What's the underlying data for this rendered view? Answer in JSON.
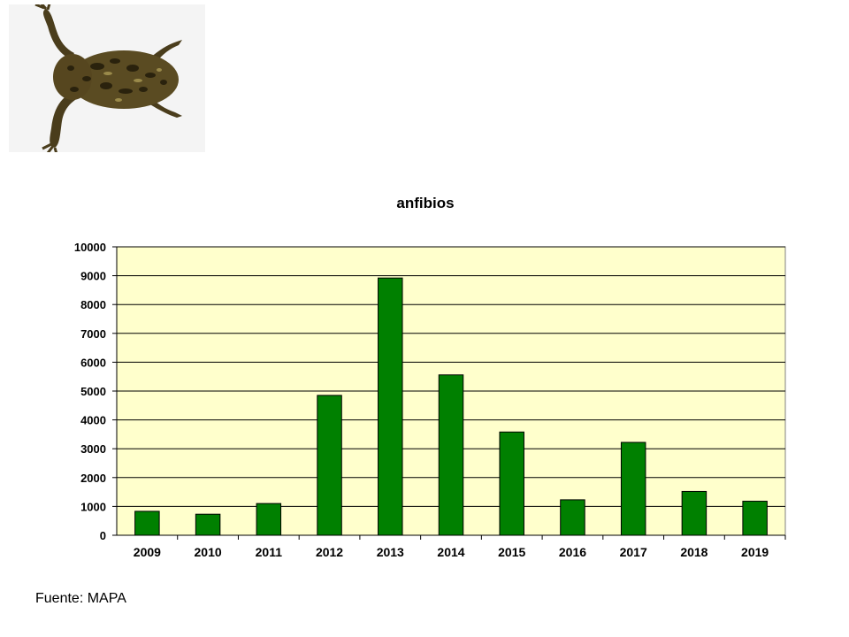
{
  "photo": {
    "icon": "frog-photo",
    "background": "#f4f4f4"
  },
  "source": "Fuente: MAPA",
  "colors": {
    "bar": "#008000",
    "plot_bg": "#ffffcc",
    "grid": "#000000"
  },
  "chart_data": {
    "type": "bar",
    "title": "anfibios",
    "xlabel": "",
    "ylabel": "",
    "categories": [
      "2009",
      "2010",
      "2011",
      "2012",
      "2013",
      "2014",
      "2015",
      "2016",
      "2017",
      "2018",
      "2019"
    ],
    "values": [
      830,
      730,
      1100,
      4850,
      8920,
      5560,
      3580,
      1230,
      3220,
      1520,
      1180
    ],
    "ylim": [
      0,
      10000
    ],
    "yticks": [
      0,
      1000,
      2000,
      3000,
      4000,
      5000,
      6000,
      7000,
      8000,
      9000,
      10000
    ],
    "grid": true,
    "legend": "none"
  }
}
